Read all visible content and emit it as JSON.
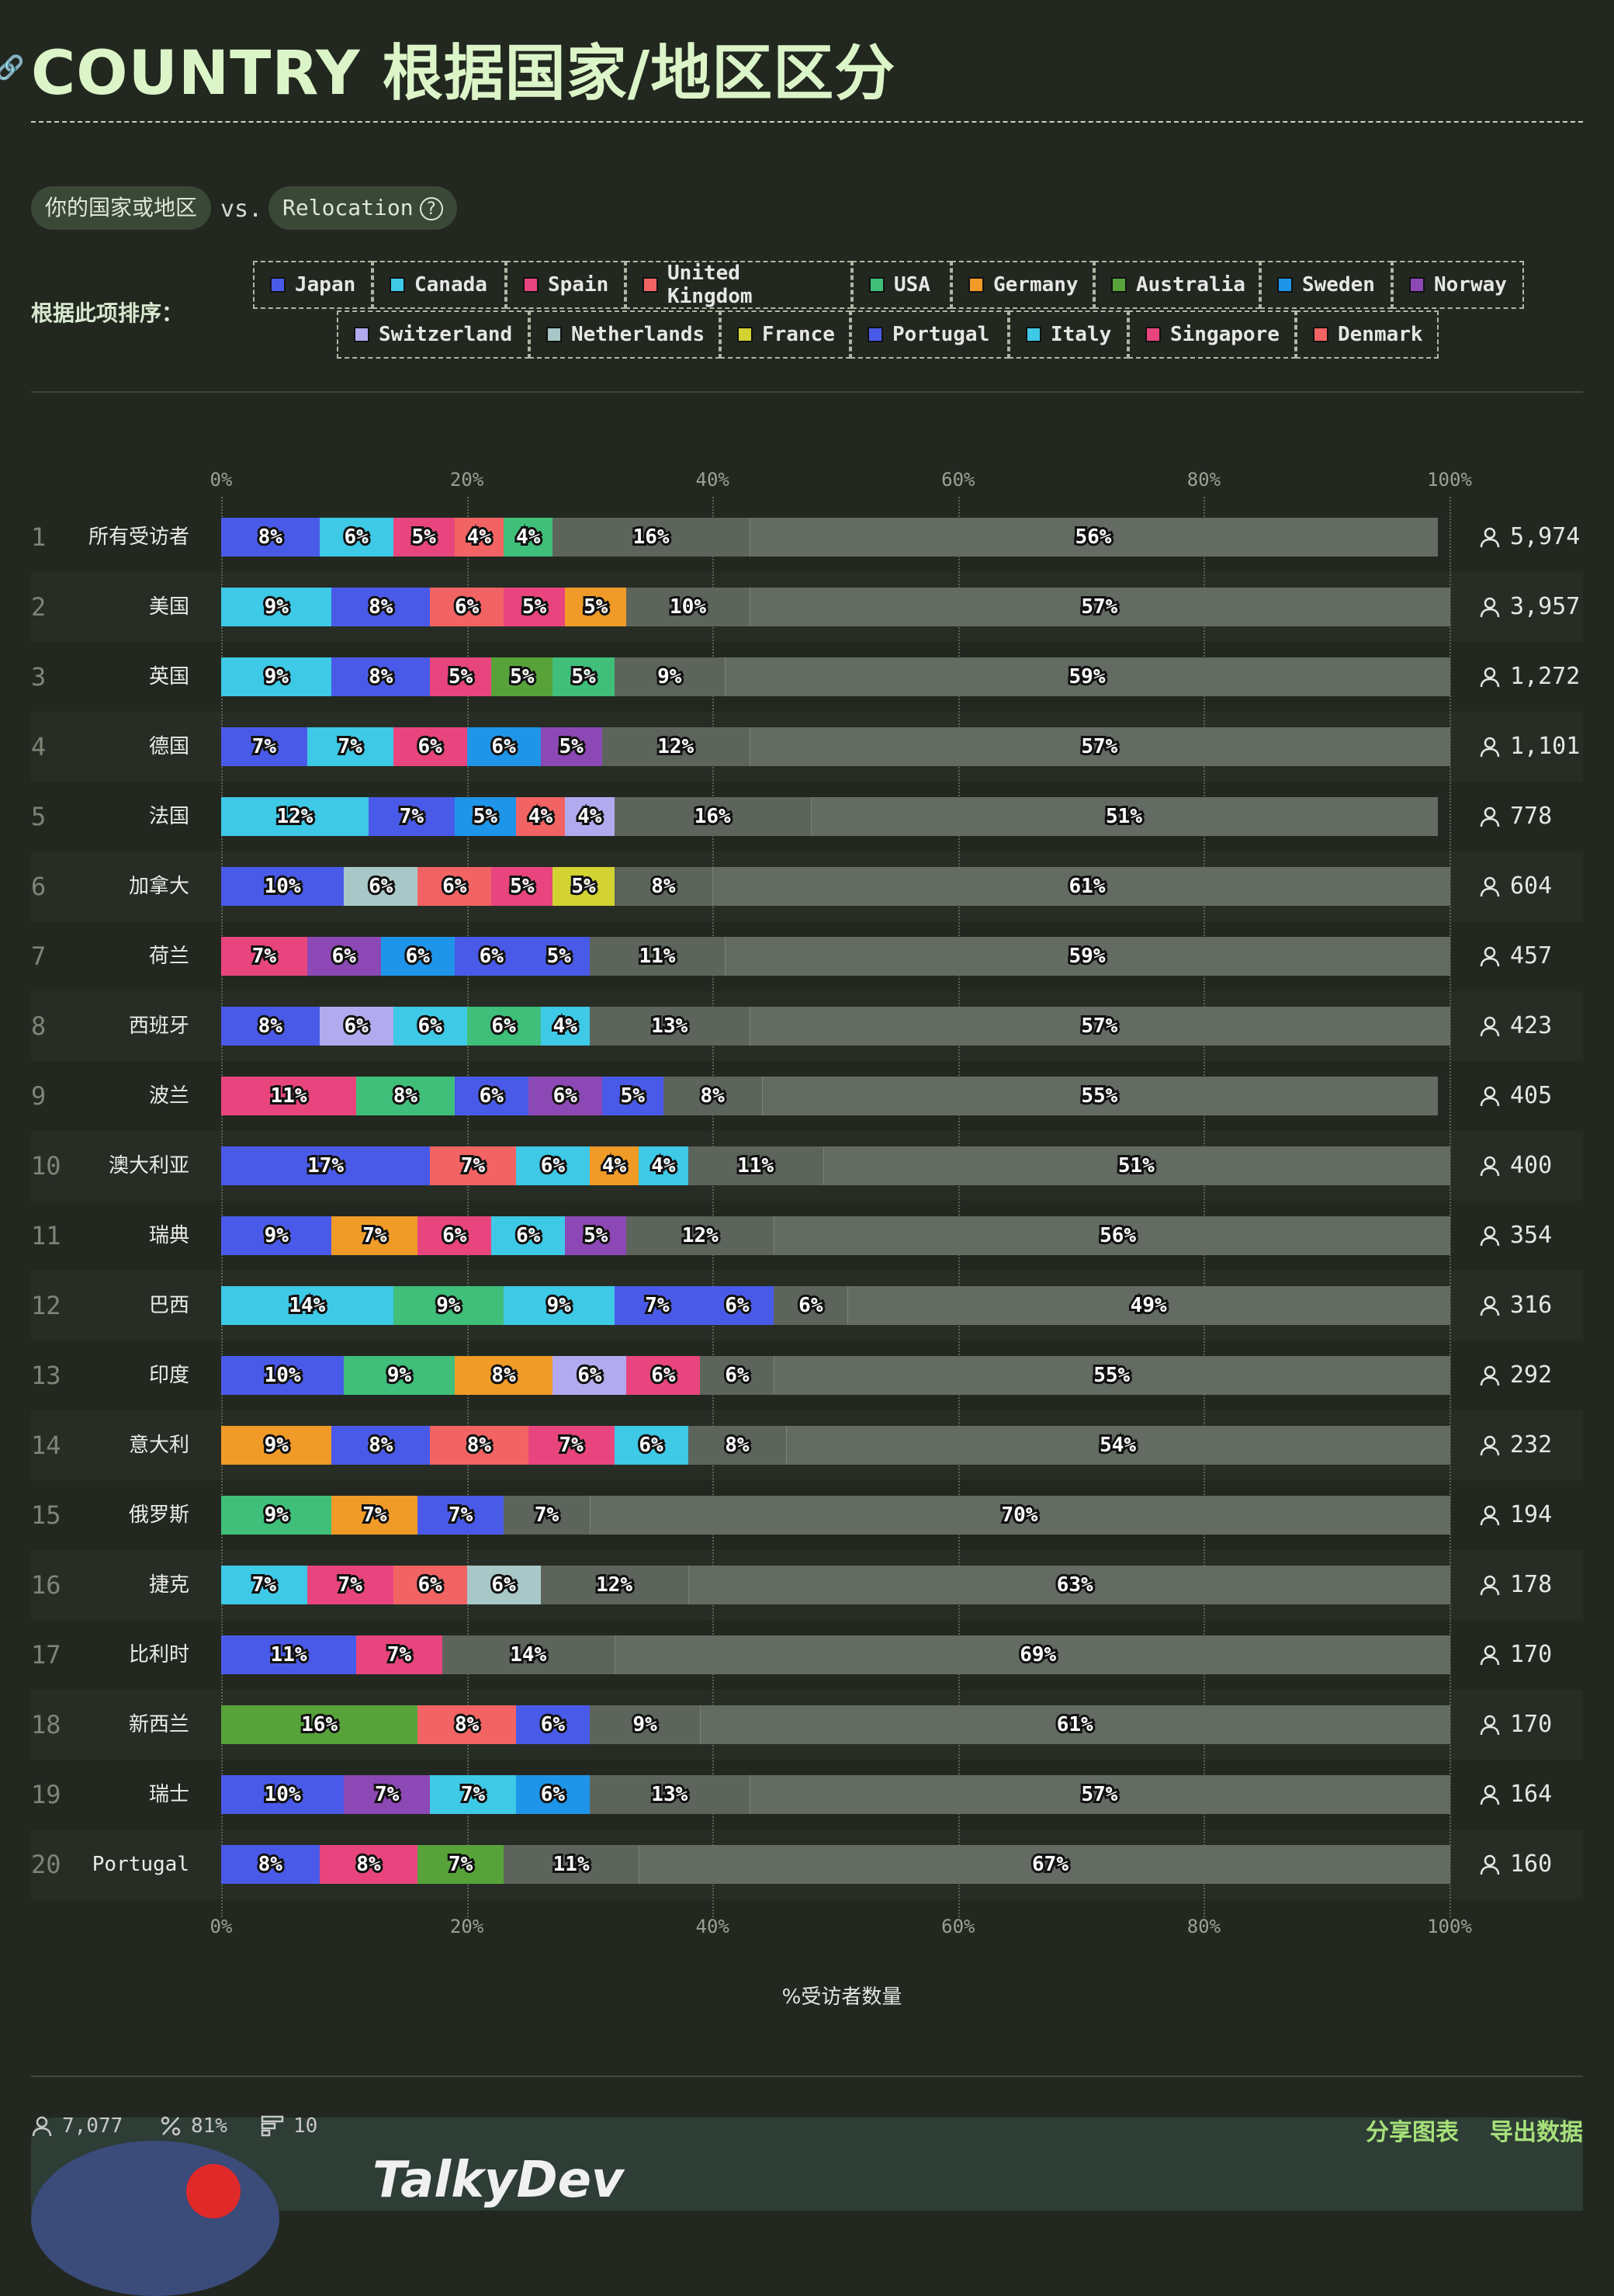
{
  "header": {
    "title": "COUNTRY 根据国家/地区区分",
    "filter_left": "你的国家或地区",
    "vs": "vs.",
    "filter_right": "Relocation",
    "help_glyph": "?",
    "sort_label": "根据此项排序："
  },
  "legend": [
    {
      "name": "Japan",
      "color": "#4a5ae8"
    },
    {
      "name": "Canada",
      "color": "#3ec9e6"
    },
    {
      "name": "Spain",
      "color": "#e8457e"
    },
    {
      "name": "United Kingdom",
      "color": "#f26363"
    },
    {
      "name": "USA",
      "color": "#3fbf7a"
    },
    {
      "name": "Germany",
      "color": "#f09a28"
    },
    {
      "name": "Australia",
      "color": "#57a33a"
    },
    {
      "name": "Sweden",
      "color": "#1e95e8"
    },
    {
      "name": "Norway",
      "color": "#8c48b4"
    },
    {
      "name": "Switzerland",
      "color": "#b2aaee"
    },
    {
      "name": "Netherlands",
      "color": "#a8c8c8"
    },
    {
      "name": "France",
      "color": "#d2d232"
    },
    {
      "name": "Portugal",
      "color": "#4a5ae8"
    },
    {
      "name": "Italy",
      "color": "#3ec9e6"
    },
    {
      "name": "Singapore",
      "color": "#e8457e"
    },
    {
      "name": "Denmark",
      "color": "#f26363"
    }
  ],
  "colors": {
    "Japan": "#4a5ae8",
    "Portugal": "#4a5ae8",
    "Canada": "#3ec9e6",
    "Italy": "#3ec9e6",
    "Spain": "#e8457e",
    "Singapore": "#e8457e",
    "United Kingdom": "#f26363",
    "Denmark": "#f26363",
    "USA": "#3fbf7a",
    "Germany": "#f09a28",
    "Australia": "#57a33a",
    "Sweden": "#1e95e8",
    "Norway": "#8c48b4",
    "Switzerland": "#b2aaee",
    "Netherlands": "#a8c8c8",
    "France": "#d2d232",
    "other": "#5c645b",
    "rest": "#636b62"
  },
  "chart_data": {
    "type": "bar",
    "orientation": "horizontal-stacked",
    "xlabel": "%受访者数量",
    "xlim": [
      0,
      100
    ],
    "x_ticks": [
      "0%",
      "20%",
      "40%",
      "60%",
      "80%",
      "100%"
    ],
    "grid": true,
    "rows": [
      {
        "rank": "1",
        "label": "所有受访者",
        "count": "5,974",
        "segments": [
          [
            "Japan",
            8
          ],
          [
            "Canada",
            6
          ],
          [
            "Spain",
            5
          ],
          [
            "United Kingdom",
            4
          ],
          [
            "USA",
            4
          ],
          [
            "other",
            16
          ],
          [
            "rest",
            56
          ]
        ]
      },
      {
        "rank": "2",
        "label": "美国",
        "count": "3,957",
        "segments": [
          [
            "Canada",
            9
          ],
          [
            "Japan",
            8
          ],
          [
            "United Kingdom",
            6
          ],
          [
            "Spain",
            5
          ],
          [
            "Germany",
            5
          ],
          [
            "other",
            10
          ],
          [
            "rest",
            57
          ]
        ]
      },
      {
        "rank": "3",
        "label": "英国",
        "count": "1,272",
        "segments": [
          [
            "Canada",
            9
          ],
          [
            "Japan",
            8
          ],
          [
            "Spain",
            5
          ],
          [
            "Australia",
            5
          ],
          [
            "USA",
            5
          ],
          [
            "other",
            9
          ],
          [
            "rest",
            59
          ]
        ]
      },
      {
        "rank": "4",
        "label": "德国",
        "count": "1,101",
        "segments": [
          [
            "Japan",
            7
          ],
          [
            "Canada",
            7
          ],
          [
            "Spain",
            6
          ],
          [
            "Sweden",
            6
          ],
          [
            "Norway",
            5
          ],
          [
            "other",
            12
          ],
          [
            "rest",
            57
          ]
        ]
      },
      {
        "rank": "5",
        "label": "法国",
        "count": "778",
        "segments": [
          [
            "Canada",
            12
          ],
          [
            "Japan",
            7
          ],
          [
            "Sweden",
            5
          ],
          [
            "United Kingdom",
            4
          ],
          [
            "Switzerland",
            4
          ],
          [
            "other",
            16
          ],
          [
            "rest",
            51
          ]
        ]
      },
      {
        "rank": "6",
        "label": "加拿大",
        "count": "604",
        "segments": [
          [
            "Japan",
            10
          ],
          [
            "Netherlands",
            6
          ],
          [
            "United Kingdom",
            6
          ],
          [
            "Spain",
            5
          ],
          [
            "France",
            5
          ],
          [
            "other",
            8
          ],
          [
            "rest",
            61
          ]
        ]
      },
      {
        "rank": "7",
        "label": "荷兰",
        "count": "457",
        "segments": [
          [
            "Spain",
            7
          ],
          [
            "Norway",
            6
          ],
          [
            "Sweden",
            6
          ],
          [
            "Japan",
            6
          ],
          [
            "Portugal",
            5
          ],
          [
            "other",
            11
          ],
          [
            "rest",
            59
          ]
        ]
      },
      {
        "rank": "8",
        "label": "西班牙",
        "count": "423",
        "segments": [
          [
            "Japan",
            8
          ],
          [
            "Switzerland",
            6
          ],
          [
            "Canada",
            6
          ],
          [
            "USA",
            6
          ],
          [
            "Canada",
            4
          ],
          [
            "other",
            13
          ],
          [
            "rest",
            57
          ]
        ]
      },
      {
        "rank": "9",
        "label": "波兰",
        "count": "405",
        "segments": [
          [
            "Spain",
            11
          ],
          [
            "USA",
            8
          ],
          [
            "Japan",
            6
          ],
          [
            "Norway",
            6
          ],
          [
            "Portugal",
            5
          ],
          [
            "other",
            8
          ],
          [
            "rest",
            55
          ]
        ]
      },
      {
        "rank": "10",
        "label": "澳大利亚",
        "count": "400",
        "segments": [
          [
            "Japan",
            17
          ],
          [
            "United Kingdom",
            7
          ],
          [
            "Canada",
            6
          ],
          [
            "Germany",
            4
          ],
          [
            "Canada",
            4
          ],
          [
            "other",
            11
          ],
          [
            "rest",
            51
          ]
        ]
      },
      {
        "rank": "11",
        "label": "瑞典",
        "count": "354",
        "segments": [
          [
            "Japan",
            9
          ],
          [
            "Germany",
            7
          ],
          [
            "Spain",
            6
          ],
          [
            "Canada",
            6
          ],
          [
            "Norway",
            5
          ],
          [
            "other",
            12
          ],
          [
            "rest",
            56
          ]
        ]
      },
      {
        "rank": "12",
        "label": "巴西",
        "count": "316",
        "segments": [
          [
            "Canada",
            14
          ],
          [
            "USA",
            9
          ],
          [
            "Canada",
            9
          ],
          [
            "Japan",
            7
          ],
          [
            "Portugal",
            6
          ],
          [
            "other",
            6
          ],
          [
            "rest",
            49
          ]
        ]
      },
      {
        "rank": "13",
        "label": "印度",
        "count": "292",
        "segments": [
          [
            "Japan",
            10
          ],
          [
            "USA",
            9
          ],
          [
            "Germany",
            8
          ],
          [
            "Switzerland",
            6
          ],
          [
            "Spain",
            6
          ],
          [
            "other",
            6
          ],
          [
            "rest",
            55
          ]
        ]
      },
      {
        "rank": "14",
        "label": "意大利",
        "count": "232",
        "segments": [
          [
            "Germany",
            9
          ],
          [
            "Japan",
            8
          ],
          [
            "United Kingdom",
            8
          ],
          [
            "Spain",
            7
          ],
          [
            "Canada",
            6
          ],
          [
            "other",
            8
          ],
          [
            "rest",
            54
          ]
        ]
      },
      {
        "rank": "15",
        "label": "俄罗斯",
        "count": "194",
        "segments": [
          [
            "USA",
            9
          ],
          [
            "Germany",
            7
          ],
          [
            "Japan",
            7
          ],
          [
            "other",
            7
          ],
          [
            "rest",
            70
          ]
        ]
      },
      {
        "rank": "16",
        "label": "捷克",
        "count": "178",
        "segments": [
          [
            "Canada",
            7
          ],
          [
            "Spain",
            7
          ],
          [
            "United Kingdom",
            6
          ],
          [
            "Netherlands",
            6
          ],
          [
            "other",
            12
          ],
          [
            "rest",
            63
          ]
        ]
      },
      {
        "rank": "17",
        "label": "比利时",
        "count": "170",
        "segments": [
          [
            "Japan",
            11
          ],
          [
            "Spain",
            7
          ],
          [
            "other",
            14
          ],
          [
            "rest",
            69
          ]
        ]
      },
      {
        "rank": "18",
        "label": "新西兰",
        "count": "170",
        "segments": [
          [
            "Australia",
            16
          ],
          [
            "United Kingdom",
            8
          ],
          [
            "Japan",
            6
          ],
          [
            "other",
            9
          ],
          [
            "rest",
            61
          ]
        ]
      },
      {
        "rank": "19",
        "label": "瑞士",
        "count": "164",
        "segments": [
          [
            "Japan",
            10
          ],
          [
            "Norway",
            7
          ],
          [
            "Canada",
            7
          ],
          [
            "Sweden",
            6
          ],
          [
            "other",
            13
          ],
          [
            "rest",
            57
          ]
        ]
      },
      {
        "rank": "20",
        "label": "Portugal",
        "count": "160",
        "segments": [
          [
            "Japan",
            8
          ],
          [
            "Spain",
            8
          ],
          [
            "Australia",
            7
          ],
          [
            "other",
            11
          ],
          [
            "rest",
            67
          ]
        ]
      }
    ]
  },
  "footer": {
    "respondents": "7,077",
    "percent": "81%",
    "items": "10",
    "share_label": "分享图表",
    "export_label": "导出数据",
    "brand": "TalkyDev"
  }
}
